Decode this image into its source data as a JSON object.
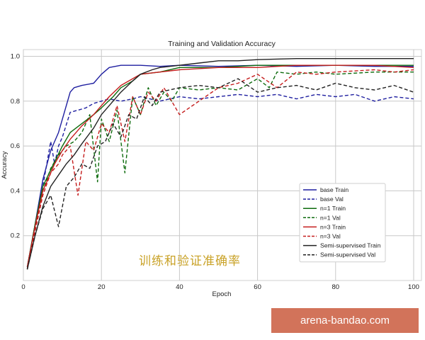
{
  "chart_data": {
    "type": "line",
    "title": "Training and Validation Accuracy",
    "xlabel": "Epoch",
    "ylabel": "Accuracy",
    "xlim": [
      0,
      102
    ],
    "ylim": [
      0.0,
      1.03
    ],
    "xticks": [
      0,
      20,
      40,
      60,
      80,
      100
    ],
    "yticks": [
      0.2,
      0.4,
      0.6,
      0.8,
      1.0
    ],
    "grid": true,
    "legend_position": "center-right",
    "series": [
      {
        "name": "base Train",
        "color": "#1f1fa0",
        "dash": "solid",
        "x": [
          1,
          3,
          5,
          7,
          9,
          10,
          11,
          12,
          13,
          15,
          18,
          20,
          22,
          25,
          30,
          35,
          40,
          50,
          60,
          70,
          80,
          90,
          100
        ],
        "y": [
          0.06,
          0.25,
          0.45,
          0.58,
          0.66,
          0.72,
          0.78,
          0.84,
          0.86,
          0.87,
          0.88,
          0.92,
          0.95,
          0.96,
          0.96,
          0.955,
          0.96,
          0.955,
          0.96,
          0.955,
          0.96,
          0.955,
          0.955
        ]
      },
      {
        "name": "base Val",
        "color": "#1f1fa0",
        "dash": "dashed",
        "x": [
          1,
          3,
          5,
          7,
          8,
          9,
          10,
          12,
          14,
          16,
          18,
          20,
          22,
          25,
          28,
          30,
          35,
          40,
          45,
          50,
          55,
          60,
          65,
          70,
          75,
          80,
          85,
          90,
          95,
          100
        ],
        "y": [
          0.05,
          0.22,
          0.42,
          0.62,
          0.52,
          0.6,
          0.64,
          0.75,
          0.76,
          0.77,
          0.79,
          0.8,
          0.81,
          0.8,
          0.81,
          0.82,
          0.8,
          0.82,
          0.81,
          0.82,
          0.83,
          0.82,
          0.83,
          0.81,
          0.83,
          0.82,
          0.83,
          0.8,
          0.82,
          0.81
        ]
      },
      {
        "name": "n=1 Train",
        "color": "#0d6b0d",
        "dash": "solid",
        "x": [
          1,
          3,
          5,
          8,
          10,
          12,
          15,
          18,
          20,
          23,
          25,
          28,
          30,
          35,
          40,
          50,
          60,
          70,
          80,
          90,
          100
        ],
        "y": [
          0.06,
          0.25,
          0.42,
          0.53,
          0.6,
          0.66,
          0.7,
          0.74,
          0.77,
          0.82,
          0.86,
          0.89,
          0.92,
          0.93,
          0.95,
          0.95,
          0.96,
          0.96,
          0.96,
          0.96,
          0.96
        ]
      },
      {
        "name": "n=1 Val",
        "color": "#0d6b0d",
        "dash": "dashed",
        "x": [
          1,
          3,
          5,
          7,
          9,
          11,
          13,
          15,
          17,
          19,
          20,
          22,
          24,
          26,
          28,
          30,
          32,
          34,
          36,
          38,
          40,
          45,
          50,
          55,
          60,
          63,
          65,
          70,
          75,
          80,
          90,
          100
        ],
        "y": [
          0.05,
          0.24,
          0.4,
          0.5,
          0.56,
          0.6,
          0.62,
          0.66,
          0.74,
          0.44,
          0.72,
          0.62,
          0.76,
          0.48,
          0.82,
          0.74,
          0.86,
          0.78,
          0.84,
          0.8,
          0.86,
          0.85,
          0.86,
          0.85,
          0.9,
          0.86,
          0.93,
          0.92,
          0.93,
          0.92,
          0.93,
          0.93
        ]
      },
      {
        "name": "n=3 Train",
        "color": "#c51d1d",
        "dash": "solid",
        "x": [
          1,
          3,
          5,
          8,
          10,
          12,
          15,
          18,
          20,
          22,
          25,
          28,
          30,
          35,
          40,
          50,
          60,
          70,
          80,
          90,
          100
        ],
        "y": [
          0.06,
          0.24,
          0.4,
          0.52,
          0.58,
          0.63,
          0.69,
          0.74,
          0.78,
          0.82,
          0.87,
          0.9,
          0.92,
          0.93,
          0.94,
          0.95,
          0.95,
          0.96,
          0.96,
          0.96,
          0.95
        ]
      },
      {
        "name": "n=3 Val",
        "color": "#c51d1d",
        "dash": "dashed",
        "x": [
          1,
          3,
          5,
          7,
          9,
          10,
          12,
          14,
          16,
          18,
          20,
          22,
          24,
          26,
          28,
          30,
          32,
          34,
          36,
          38,
          40,
          45,
          50,
          55,
          60,
          65,
          70,
          75,
          80,
          90,
          95,
          100
        ],
        "y": [
          0.05,
          0.22,
          0.38,
          0.48,
          0.52,
          0.56,
          0.6,
          0.38,
          0.62,
          0.58,
          0.7,
          0.66,
          0.78,
          0.62,
          0.82,
          0.74,
          0.84,
          0.8,
          0.86,
          0.8,
          0.74,
          0.8,
          0.86,
          0.88,
          0.92,
          0.86,
          0.93,
          0.92,
          0.93,
          0.94,
          0.93,
          0.94
        ]
      },
      {
        "name": "Semi-supervised Train",
        "color": "#222222",
        "dash": "solid",
        "x": [
          1,
          3,
          5,
          7,
          9,
          11,
          13,
          15,
          18,
          20,
          22,
          25,
          28,
          30,
          33,
          35,
          40,
          45,
          50,
          55,
          60,
          70,
          80,
          90,
          100
        ],
        "y": [
          0.05,
          0.2,
          0.33,
          0.42,
          0.47,
          0.52,
          0.56,
          0.61,
          0.68,
          0.74,
          0.78,
          0.84,
          0.89,
          0.92,
          0.94,
          0.95,
          0.96,
          0.97,
          0.98,
          0.98,
          0.985,
          0.99,
          0.99,
          0.99,
          0.99
        ]
      },
      {
        "name": "Semi-supervised Val",
        "color": "#222222",
        "dash": "dashed",
        "x": [
          1,
          3,
          5,
          7,
          9,
          11,
          13,
          15,
          17,
          19,
          21,
          23,
          25,
          27,
          29,
          31,
          33,
          35,
          40,
          45,
          50,
          55,
          60,
          65,
          70,
          75,
          80,
          85,
          90,
          95,
          100
        ],
        "y": [
          0.05,
          0.2,
          0.32,
          0.38,
          0.24,
          0.42,
          0.46,
          0.52,
          0.5,
          0.6,
          0.62,
          0.7,
          0.64,
          0.74,
          0.72,
          0.82,
          0.78,
          0.84,
          0.86,
          0.87,
          0.86,
          0.9,
          0.84,
          0.86,
          0.87,
          0.85,
          0.88,
          0.86,
          0.85,
          0.87,
          0.84
        ]
      }
    ]
  },
  "watermark": {
    "chinese_text": "训练和验证准确率",
    "site": "arena-bandao.com"
  }
}
